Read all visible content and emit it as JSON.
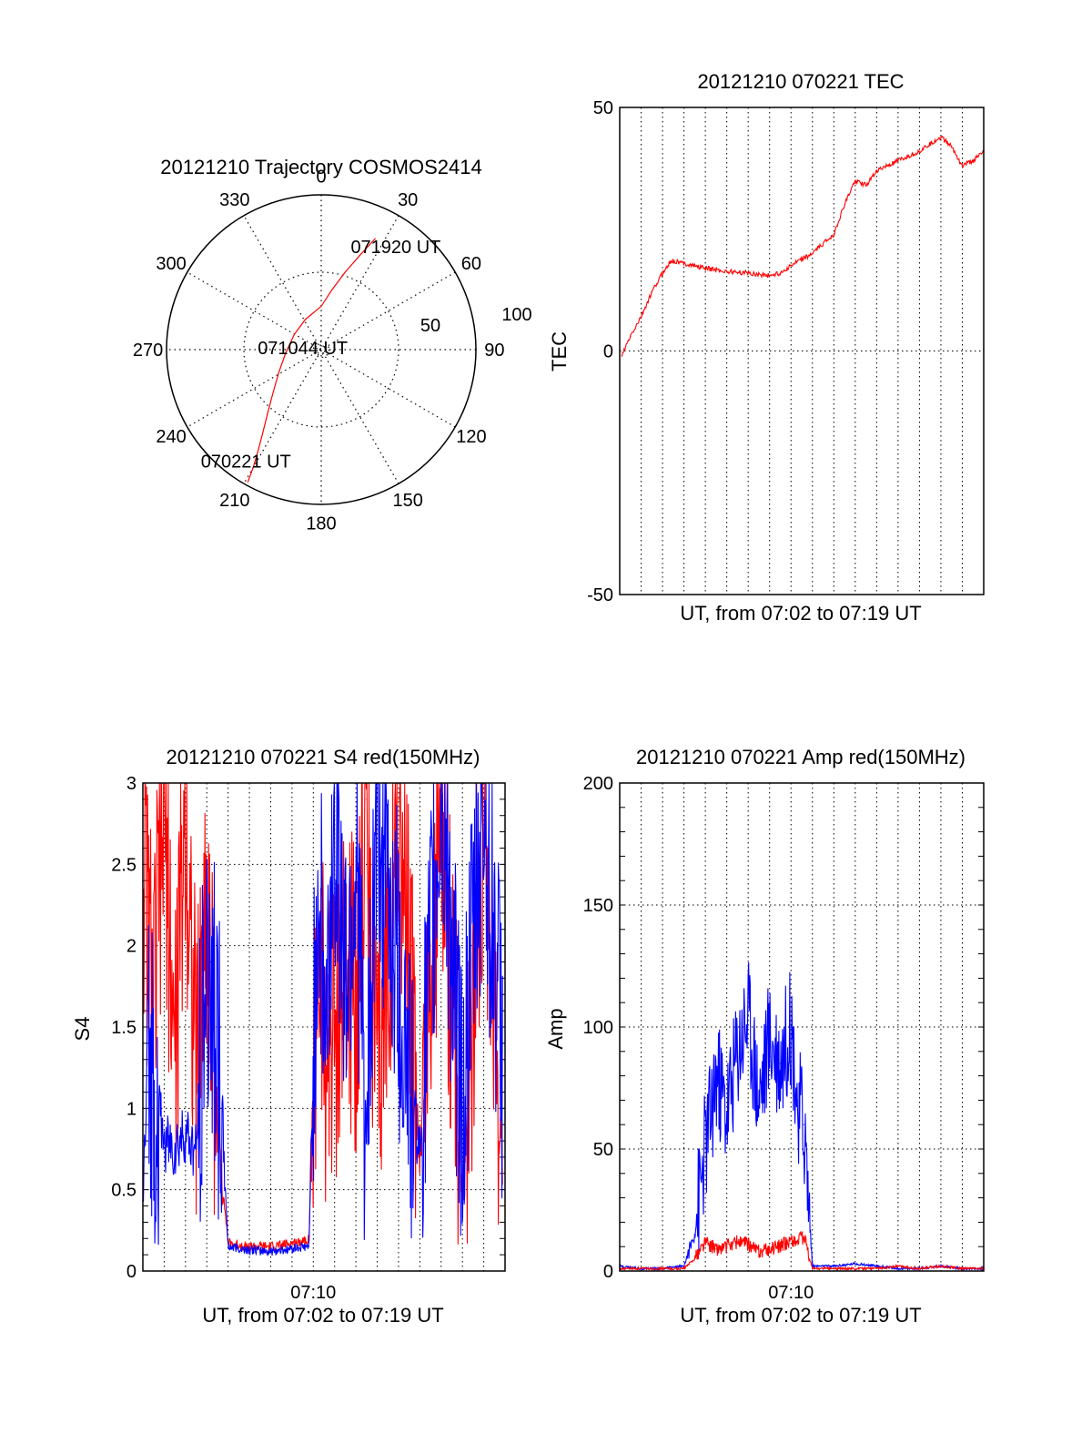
{
  "colors": {
    "red": "#ff0000",
    "blue": "#0000ff",
    "axis": "#000000",
    "grid": "#000000"
  },
  "chart_data": [
    {
      "id": "trajectory",
      "type": "polar",
      "title": "20121210 Trajectory COSMOS2414",
      "azimuth_labels": [
        "0",
        "30",
        "60",
        "90",
        "120",
        "150",
        "180",
        "210",
        "240",
        "270",
        "300",
        "330"
      ],
      "radius_labels": [
        "50",
        "100"
      ],
      "radius_max": 100,
      "grid": true,
      "track": {
        "color": "#ff0000",
        "points": [
          {
            "azimuth": 209,
            "radius": 98
          },
          {
            "azimuth": 210,
            "radius": 88
          },
          {
            "azimuth": 212,
            "radius": 77
          },
          {
            "azimuth": 215,
            "radius": 66
          },
          {
            "azimuth": 220,
            "radius": 54
          },
          {
            "azimuth": 228,
            "radius": 42
          },
          {
            "azimuth": 242,
            "radius": 31
          },
          {
            "azimuth": 265,
            "radius": 23
          },
          {
            "azimuth": 300,
            "radius": 20
          },
          {
            "azimuth": 332,
            "radius": 22
          },
          {
            "azimuth": 0,
            "radius": 28
          },
          {
            "azimuth": 10,
            "radius": 39
          },
          {
            "azimuth": 17,
            "radius": 52
          },
          {
            "azimuth": 22,
            "radius": 65
          },
          {
            "azimuth": 26,
            "radius": 80
          }
        ]
      },
      "annotations": [
        {
          "text": "071920 UT",
          "azimuth": 36,
          "radius": 82
        },
        {
          "text": "071044 UT",
          "azimuth": 275,
          "radius": 12
        },
        {
          "text": "070221 UT",
          "azimuth": 214,
          "radius": 87
        }
      ]
    },
    {
      "id": "tec",
      "type": "line",
      "title": "20121210 070221 TEC",
      "ylabel": "TEC",
      "xlabel": "UT, from 07:02 to 07:19 UT",
      "xlim": [
        0,
        17
      ],
      "ylim": [
        -50,
        50
      ],
      "yticks": [
        "50",
        "0",
        "-50"
      ],
      "yticks_values": [
        50,
        0,
        -50
      ],
      "xticks": [],
      "grid": true,
      "series": [
        {
          "color": "#ff0000",
          "x": [
            0.1,
            0.5,
            1.0,
            1.5,
            2.0,
            2.4,
            3.0,
            4.0,
            5.0,
            6.0,
            7.0,
            7.5,
            8.0,
            9.0,
            10.0,
            10.5,
            11.0,
            11.5,
            12.0,
            12.5,
            13.0,
            14.0,
            15.0,
            15.5,
            16.0,
            16.5,
            17.0
          ],
          "y": [
            -1,
            3,
            7,
            12,
            16,
            18.5,
            18,
            17,
            16.3,
            16,
            15.5,
            16,
            17.5,
            20,
            24,
            30,
            35,
            34,
            37,
            38,
            39,
            41,
            44,
            42,
            38,
            39,
            41
          ]
        }
      ]
    },
    {
      "id": "s4",
      "type": "line",
      "title": "20121210 070221 S4 red(150MHz)",
      "ylabel": "S4",
      "xlabel": "UT, from 07:02 to 07:19 UT",
      "xlim": [
        0,
        17
      ],
      "ylim": [
        0,
        3
      ],
      "yticks": [
        "0",
        "0.5",
        "1",
        "1.5",
        "2",
        "2.5",
        "3"
      ],
      "yticks_values": [
        0,
        0.5,
        1,
        1.5,
        2,
        2.5,
        3
      ],
      "xticks": [
        "07:10"
      ],
      "xticks_values": [
        8
      ],
      "grid": true,
      "series": [
        {
          "color": "#ff0000",
          "x": [
            0,
            0.5,
            1.0,
            1.5,
            2.0,
            2.5,
            3.0,
            3.5,
            4.0,
            5.0,
            6.0,
            7.0,
            7.8,
            8.2,
            8.6,
            9.0,
            9.5,
            10.0,
            10.5,
            11.0,
            12.0,
            13.0,
            14.0,
            15.0,
            16.0,
            16.9
          ],
          "y": [
            2.6,
            1.6,
            2.9,
            1.3,
            2.9,
            1.2,
            2.3,
            0.9,
            0.17,
            0.15,
            0.15,
            0.17,
            0.2,
            2.0,
            1.3,
            1.5,
            1.8,
            1.7,
            2.9,
            1.0,
            2.9,
            0.7,
            2.9,
            0.5,
            2.9,
            0.6
          ]
        },
        {
          "color": "#0000ff",
          "x": [
            0,
            0.3,
            0.6,
            1.0,
            1.5,
            2.0,
            2.5,
            2.8,
            3.2,
            3.7,
            4.0,
            5.0,
            6.0,
            7.0,
            7.8,
            8.2,
            8.6,
            9.0,
            9.5,
            10.0,
            10.5,
            11.0,
            12.0,
            13.0,
            14.0,
            15.0,
            16.0,
            16.9
          ],
          "y": [
            0.45,
            1.4,
            1.1,
            0.8,
            0.75,
            0.85,
            0.7,
            1.6,
            1.9,
            1.0,
            0.15,
            0.13,
            0.12,
            0.14,
            0.15,
            2.5,
            1.4,
            2.9,
            1.8,
            2.5,
            0.8,
            2.9,
            1.8,
            0.7,
            2.9,
            1.0,
            2.9,
            1.2
          ]
        }
      ]
    },
    {
      "id": "amp",
      "type": "line",
      "title": "20121210 070221 Amp red(150MHz)",
      "ylabel": "Amp",
      "xlabel": "UT, from 07:02 to 07:19 UT",
      "xlim": [
        0,
        17
      ],
      "ylim": [
        0,
        200
      ],
      "yticks": [
        "0",
        "50",
        "100",
        "150",
        "200"
      ],
      "yticks_values": [
        0,
        50,
        100,
        150,
        200
      ],
      "xticks": [
        "07:10"
      ],
      "xticks_values": [
        8
      ],
      "grid": true,
      "series": [
        {
          "color": "#0000ff",
          "x": [
            0,
            1,
            2,
            3,
            3.5,
            4.0,
            4.5,
            5.0,
            5.5,
            6.0,
            6.5,
            7.0,
            7.5,
            8.0,
            8.3,
            8.6,
            9.0,
            10,
            11,
            12,
            13,
            14,
            15,
            16,
            17
          ],
          "y": [
            2,
            1,
            1,
            2,
            15,
            50,
            80,
            65,
            90,
            105,
            70,
            95,
            85,
            100,
            70,
            60,
            2,
            2,
            3,
            2,
            1,
            1,
            2,
            1,
            1
          ]
        },
        {
          "color": "#ff0000",
          "x": [
            0,
            1,
            2,
            3,
            3.5,
            4.0,
            4.5,
            5.0,
            5.5,
            6.0,
            6.5,
            7.0,
            7.5,
            8.0,
            8.3,
            8.6,
            9.0,
            10,
            11,
            12,
            13,
            14,
            15,
            16,
            17
          ],
          "y": [
            1,
            1,
            1,
            1,
            5,
            12,
            9,
            10,
            12,
            11,
            8,
            9,
            10,
            13,
            12,
            14,
            1,
            1,
            1,
            1,
            2,
            1,
            2,
            1,
            1
          ]
        }
      ]
    }
  ]
}
